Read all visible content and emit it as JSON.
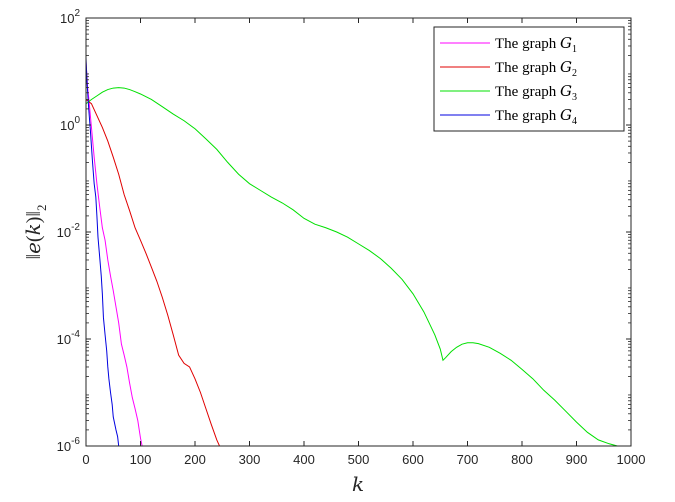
{
  "chart_data": {
    "type": "line",
    "title": "",
    "xlabel": "k",
    "ylabel": "||e(k)||_2",
    "ylabel_display": {
      "left": "‖",
      "fn": "e",
      "paren_open": "(",
      "var": "k",
      "paren_close": ")",
      "right": "‖",
      "sub": "2"
    },
    "xlim": [
      0,
      1000
    ],
    "ylim": [
      1e-06,
      100
    ],
    "yscale": "log",
    "grid": false,
    "legend_position": "top-right",
    "x_ticks": [
      0,
      100,
      200,
      300,
      400,
      500,
      600,
      700,
      800,
      900,
      1000
    ],
    "x_tick_labels": [
      "0",
      "100",
      "200",
      "300",
      "400",
      "500",
      "600",
      "700",
      "800",
      "900",
      "1000"
    ],
    "y_ticks": [
      1e-06,
      0.0001,
      0.01,
      1,
      100
    ],
    "y_tick_labels": [
      {
        "base": "10",
        "exp": "-6"
      },
      {
        "base": "10",
        "exp": "-4"
      },
      {
        "base": "10",
        "exp": "-2"
      },
      {
        "base": "10",
        "exp": "0"
      },
      {
        "base": "10",
        "exp": "2"
      }
    ],
    "series": [
      {
        "name": "The graph G1",
        "legend_text": "The graph ",
        "legend_math": "G",
        "legend_sub": "1",
        "color": "#ff00ff",
        "x": [
          0,
          3,
          6,
          10,
          15,
          20,
          25,
          30,
          35,
          40,
          45,
          50,
          55,
          60,
          65,
          70,
          75,
          80,
          85,
          90,
          95,
          100,
          103
        ],
        "y": [
          15,
          5,
          2.5,
          0.9,
          0.25,
          0.08,
          0.03,
          0.012,
          0.007,
          0.003,
          0.0015,
          0.0008,
          0.0004,
          0.0002,
          8e-05,
          5e-05,
          3e-05,
          1.5e-05,
          8e-06,
          5e-06,
          3e-06,
          1.4e-06,
          1e-06
        ]
      },
      {
        "name": "The graph G2",
        "legend_text": "The graph ",
        "legend_math": "G",
        "legend_sub": "2",
        "color": "#e00000",
        "x": [
          0,
          10,
          20,
          30,
          40,
          50,
          60,
          70,
          80,
          90,
          100,
          110,
          120,
          130,
          140,
          150,
          160,
          170,
          180,
          190,
          200,
          210,
          220,
          230,
          240,
          245
        ],
        "y": [
          3,
          2.5,
          1.5,
          0.9,
          0.5,
          0.25,
          0.12,
          0.05,
          0.025,
          0.012,
          0.007,
          0.004,
          0.0022,
          0.0012,
          0.0006,
          0.00028,
          0.00012,
          5e-05,
          3.5e-05,
          3e-05,
          1.8e-05,
          1e-05,
          5e-06,
          2.5e-06,
          1.3e-06,
          1e-06
        ]
      },
      {
        "name": "The graph G3",
        "legend_text": "The graph ",
        "legend_math": "G",
        "legend_sub": "3",
        "color": "#00e000",
        "x": [
          0,
          10,
          20,
          30,
          40,
          50,
          60,
          70,
          80,
          90,
          100,
          120,
          140,
          160,
          180,
          200,
          220,
          240,
          260,
          280,
          300,
          320,
          340,
          360,
          380,
          400,
          420,
          440,
          460,
          480,
          500,
          520,
          540,
          560,
          580,
          600,
          620,
          640,
          650,
          655,
          660,
          670,
          680,
          690,
          700,
          710,
          720,
          740,
          760,
          780,
          800,
          820,
          840,
          860,
          880,
          900,
          920,
          940,
          960,
          975
        ],
        "y": [
          2.5,
          3,
          3.5,
          4.1,
          4.6,
          4.9,
          5,
          4.9,
          4.6,
          4.2,
          3.8,
          3,
          2.2,
          1.6,
          1.2,
          0.85,
          0.55,
          0.35,
          0.2,
          0.12,
          0.08,
          0.06,
          0.045,
          0.035,
          0.026,
          0.018,
          0.014,
          0.012,
          0.01,
          0.008,
          0.006,
          0.0045,
          0.0032,
          0.0021,
          0.0013,
          0.0007,
          0.00032,
          0.00012,
          6.5e-05,
          4e-05,
          4.5e-05,
          5.8e-05,
          7e-05,
          8e-05,
          8.5e-05,
          8.5e-05,
          8.2e-05,
          7e-05,
          5.4e-05,
          4e-05,
          2.7e-05,
          1.8e-05,
          1.1e-05,
          7.2e-06,
          4.5e-06,
          2.8e-06,
          1.8e-06,
          1.3e-06,
          1.1e-06,
          1e-06
        ]
      },
      {
        "name": "The graph G4",
        "legend_text": "The graph ",
        "legend_math": "G",
        "legend_sub": "4",
        "color": "#0000e0",
        "x": [
          0,
          2,
          5,
          8,
          10,
          12,
          15,
          18,
          20,
          22,
          25,
          28,
          30,
          32,
          35,
          38,
          40,
          42,
          45,
          48,
          50,
          55,
          58,
          60
        ],
        "y": [
          18,
          6,
          2,
          0.8,
          0.4,
          0.2,
          0.08,
          0.045,
          0.02,
          0.008,
          0.0035,
          0.0015,
          0.0007,
          0.00025,
          0.00012,
          6e-05,
          3e-05,
          1.8e-05,
          1e-05,
          6e-06,
          3.5e-06,
          2e-06,
          1.5e-06,
          1e-06
        ]
      }
    ]
  }
}
